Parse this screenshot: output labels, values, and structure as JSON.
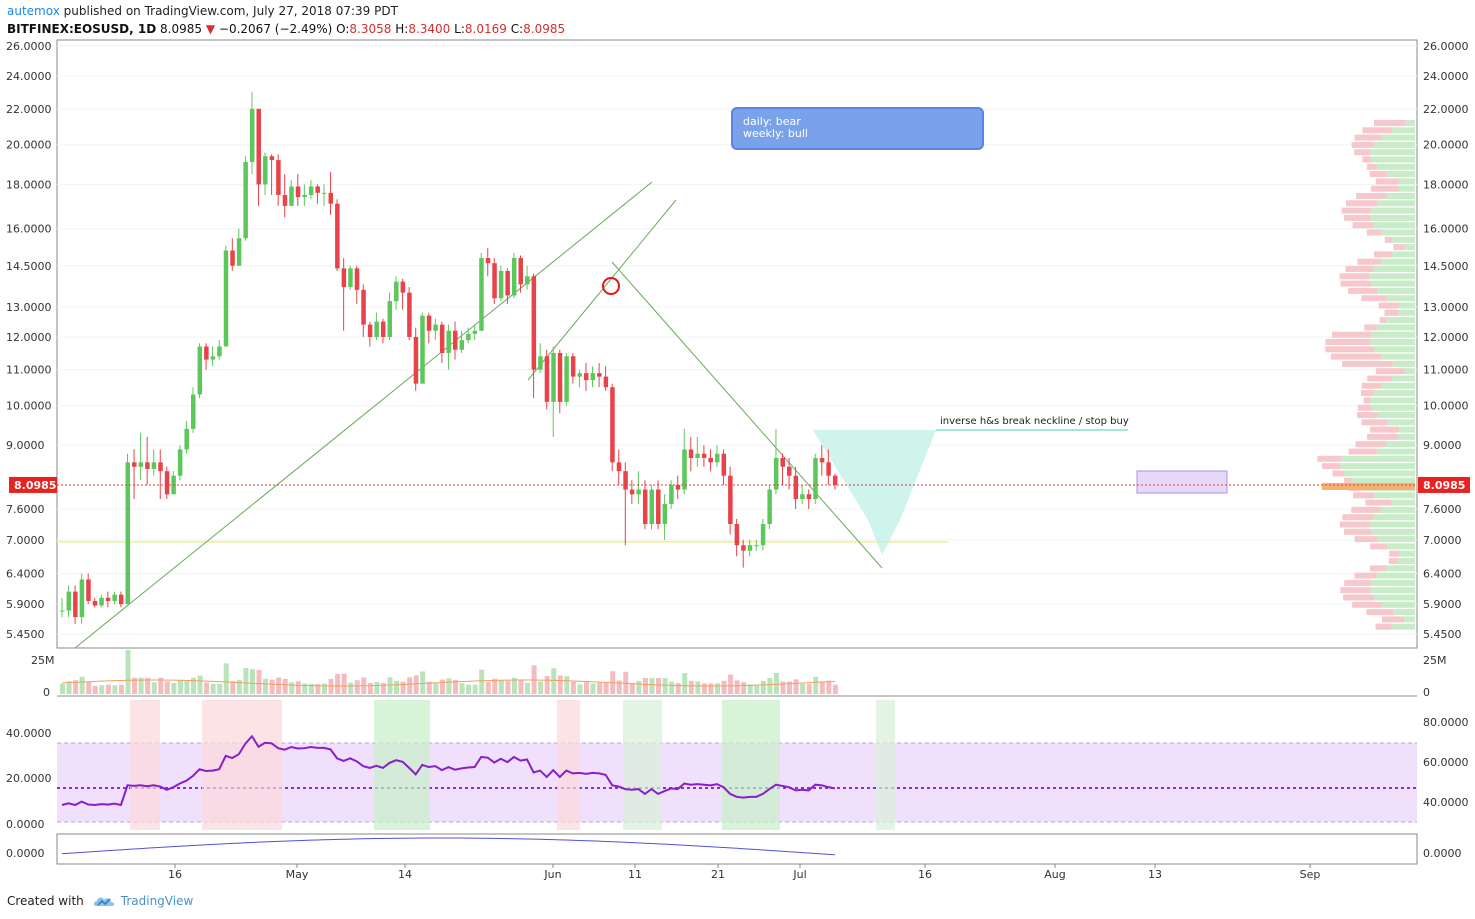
{
  "header": {
    "user": "autemox",
    "published": "published on TradingView.com, July 27, 2018 07:39 PDT",
    "symbol_line": "BITFINEX:EOSUSD, 1D",
    "last": "8.0985",
    "arrow": "▼",
    "change": "−0.2067 (−2.49%)",
    "ohlc": [
      {
        "k": "O:",
        "v": "8.3058"
      },
      {
        "k": "H:",
        "v": "8.3400"
      },
      {
        "k": "L:",
        "v": "8.0169"
      },
      {
        "k": "C:",
        "v": "8.0985"
      }
    ]
  },
  "footer": {
    "created": "Created with",
    "brand": "TradingView",
    "logo_icon": "tradingview-cloud-icon"
  },
  "note_box": {
    "line1": "daily: bear",
    "line2": "weekly: bull"
  },
  "annotation": "inverse h&s break neckline / stop buy",
  "colors": {
    "up": "#5cc85c",
    "down": "#e8424a",
    "grid": "#f0f3f8",
    "trend": "#6aaa5c",
    "support": "#f5f07a",
    "purple": "#8a2be2"
  },
  "chart_data": {
    "type": "candlestick",
    "title": "BITFINEX:EOSUSD, 1D",
    "x_labels": [
      "16",
      "May",
      "14",
      "Jun",
      "11",
      "21",
      "Jul",
      "16",
      "Aug",
      "13",
      "Sep"
    ],
    "y_ticks": [
      "26.0000",
      "24.0000",
      "22.0000",
      "20.0000",
      "18.0000",
      "16.0000",
      "14.5000",
      "13.0000",
      "12.0000",
      "11.0000",
      "10.0000",
      "9.0000",
      "8.0985",
      "7.6000",
      "7.0000",
      "6.4000",
      "5.9000",
      "5.4500"
    ],
    "y_scale": "log",
    "last_price": "8.0985",
    "candles": [
      [
        5.8,
        5.8,
        6.0,
        5.7
      ],
      [
        5.8,
        6.1,
        6.2,
        5.7
      ],
      [
        6.1,
        5.7,
        6.2,
        5.6
      ],
      [
        5.7,
        6.3,
        6.4,
        5.6
      ],
      [
        6.3,
        5.95,
        6.4,
        5.9
      ],
      [
        5.95,
        5.88,
        6.0,
        5.85
      ],
      [
        5.88,
        6.0,
        6.05,
        5.85
      ],
      [
        6.0,
        5.95,
        6.1,
        5.85
      ],
      [
        5.95,
        6.05,
        6.1,
        5.9
      ],
      [
        6.05,
        5.9,
        6.1,
        5.85
      ],
      [
        5.9,
        8.6,
        8.8,
        5.9
      ],
      [
        8.6,
        8.5,
        8.9,
        7.8
      ],
      [
        8.5,
        8.6,
        9.3,
        8.2
      ],
      [
        8.6,
        8.45,
        9.2,
        8.1
      ],
      [
        8.45,
        8.6,
        8.9,
        8.3
      ],
      [
        8.6,
        8.4,
        8.9,
        7.8
      ],
      [
        8.4,
        7.9,
        8.5,
        7.8
      ],
      [
        7.9,
        8.3,
        8.4,
        7.9
      ],
      [
        8.3,
        8.9,
        9.0,
        8.2
      ],
      [
        8.9,
        9.4,
        9.6,
        8.8
      ],
      [
        9.4,
        10.3,
        10.5,
        9.3
      ],
      [
        10.3,
        11.7,
        11.8,
        10.2
      ],
      [
        11.7,
        11.3,
        11.8,
        11.0
      ],
      [
        11.3,
        11.4,
        11.7,
        11.1
      ],
      [
        11.4,
        11.7,
        11.9,
        11.3
      ],
      [
        11.7,
        15.1,
        15.3,
        11.7
      ],
      [
        15.1,
        14.5,
        15.6,
        14.3
      ],
      [
        14.5,
        15.6,
        16.0,
        14.5
      ],
      [
        15.6,
        19.1,
        19.4,
        15.5
      ],
      [
        19.1,
        22.0,
        23.0,
        18.5
      ],
      [
        22.0,
        18.0,
        22.0,
        17.0
      ],
      [
        18.0,
        19.4,
        19.6,
        17.5
      ],
      [
        19.4,
        19.2,
        19.5,
        17.5
      ],
      [
        19.2,
        17.5,
        19.5,
        17.0
      ],
      [
        17.5,
        17.0,
        18.5,
        16.5
      ],
      [
        17.0,
        17.9,
        18.2,
        17.0
      ],
      [
        17.9,
        17.4,
        18.5,
        17.0
      ],
      [
        17.4,
        17.5,
        18.0,
        17.0
      ],
      [
        17.5,
        17.9,
        18.2,
        17.3
      ],
      [
        17.9,
        17.6,
        18.0,
        17.1
      ],
      [
        17.6,
        17.6,
        18.0,
        17.0
      ],
      [
        17.6,
        17.1,
        18.6,
        16.6
      ],
      [
        17.1,
        14.4,
        17.3,
        14.3
      ],
      [
        14.4,
        13.7,
        14.8,
        12.2
      ],
      [
        13.7,
        14.4,
        14.5,
        13.6
      ],
      [
        14.4,
        13.6,
        14.5,
        13.1
      ],
      [
        13.6,
        12.4,
        13.8,
        12.0
      ],
      [
        12.4,
        12.0,
        12.5,
        11.7
      ],
      [
        12.0,
        12.5,
        12.8,
        11.9
      ],
      [
        12.5,
        12.0,
        12.6,
        11.8
      ],
      [
        12.0,
        13.2,
        13.5,
        11.9
      ],
      [
        13.2,
        13.9,
        14.1,
        12.9
      ],
      [
        13.9,
        13.5,
        14.0,
        12.9
      ],
      [
        13.5,
        12.0,
        13.7,
        11.9
      ],
      [
        12.0,
        10.6,
        12.3,
        10.4
      ],
      [
        10.6,
        12.7,
        12.8,
        10.6
      ],
      [
        12.7,
        12.2,
        12.8,
        11.8
      ],
      [
        12.2,
        12.4,
        12.6,
        11.9
      ],
      [
        12.4,
        11.5,
        12.5,
        11.2
      ],
      [
        11.5,
        12.2,
        12.4,
        11.0
      ],
      [
        12.2,
        11.6,
        12.5,
        11.3
      ],
      [
        11.6,
        11.9,
        12.2,
        11.5
      ],
      [
        11.9,
        12.1,
        12.3,
        11.8
      ],
      [
        12.1,
        12.2,
        12.4,
        11.9
      ],
      [
        12.2,
        14.8,
        15.0,
        12.2
      ],
      [
        14.8,
        14.6,
        15.2,
        14.1
      ],
      [
        14.6,
        13.3,
        14.8,
        13.1
      ],
      [
        13.3,
        14.3,
        14.5,
        13.2
      ],
      [
        14.3,
        13.4,
        14.4,
        13.1
      ],
      [
        13.4,
        14.8,
        15.0,
        13.3
      ],
      [
        14.8,
        13.8,
        14.9,
        13.5
      ],
      [
        13.8,
        14.1,
        14.5,
        13.6
      ],
      [
        14.1,
        11.0,
        14.2,
        10.2
      ],
      [
        11.0,
        11.4,
        11.8,
        10.9
      ],
      [
        11.4,
        10.1,
        11.6,
        9.9
      ],
      [
        10.1,
        11.5,
        11.7,
        9.2
      ],
      [
        11.5,
        10.1,
        11.6,
        9.8
      ],
      [
        10.1,
        11.4,
        11.5,
        10.0
      ],
      [
        11.4,
        10.8,
        11.5,
        10.6
      ],
      [
        10.8,
        10.9,
        11.0,
        10.5
      ],
      [
        10.9,
        10.7,
        11.2,
        10.4
      ],
      [
        10.7,
        10.9,
        11.1,
        10.5
      ],
      [
        10.9,
        10.8,
        11.2,
        10.5
      ],
      [
        10.8,
        10.5,
        11.1,
        10.4
      ],
      [
        10.5,
        8.6,
        10.6,
        8.4
      ],
      [
        8.6,
        8.4,
        8.9,
        8.1
      ],
      [
        8.4,
        8.0,
        8.6,
        6.9
      ],
      [
        8.0,
        7.9,
        8.2,
        7.7
      ],
      [
        7.9,
        8.0,
        8.4,
        7.7
      ],
      [
        8.0,
        7.3,
        8.2,
        7.2
      ],
      [
        7.3,
        8.0,
        8.1,
        7.2
      ],
      [
        8.0,
        7.3,
        8.2,
        7.2
      ],
      [
        7.3,
        7.7,
        7.9,
        7.0
      ],
      [
        7.7,
        8.1,
        8.2,
        7.6
      ],
      [
        8.1,
        8.0,
        8.3,
        7.8
      ],
      [
        8.0,
        8.9,
        9.4,
        7.9
      ],
      [
        8.9,
        8.7,
        9.2,
        8.4
      ],
      [
        8.7,
        8.8,
        9.2,
        8.5
      ],
      [
        8.8,
        8.7,
        9.0,
        8.5
      ],
      [
        8.7,
        8.6,
        8.9,
        8.4
      ],
      [
        8.6,
        8.8,
        9.0,
        8.5
      ],
      [
        8.8,
        8.3,
        8.9,
        8.1
      ],
      [
        8.3,
        7.3,
        8.5,
        7.1
      ],
      [
        7.3,
        6.9,
        7.4,
        6.7
      ],
      [
        6.9,
        6.8,
        7.0,
        6.5
      ],
      [
        6.8,
        6.9,
        7.0,
        6.7
      ],
      [
        6.9,
        6.9,
        7.0,
        6.8
      ],
      [
        6.9,
        7.3,
        7.4,
        6.8
      ],
      [
        7.3,
        8.0,
        8.1,
        7.2
      ],
      [
        8.0,
        8.7,
        9.4,
        7.9
      ],
      [
        8.7,
        8.5,
        8.8,
        8.1
      ],
      [
        8.5,
        8.3,
        8.7,
        8.0
      ],
      [
        8.3,
        7.8,
        8.5,
        7.6
      ],
      [
        7.8,
        7.9,
        8.1,
        7.7
      ],
      [
        7.9,
        7.8,
        8.0,
        7.6
      ],
      [
        7.8,
        8.7,
        8.8,
        7.7
      ],
      [
        8.7,
        8.6,
        9.0,
        8.3
      ],
      [
        8.6,
        8.3,
        8.9,
        8.1
      ],
      [
        8.3,
        8.1,
        8.34,
        8.0
      ]
    ]
  }
}
